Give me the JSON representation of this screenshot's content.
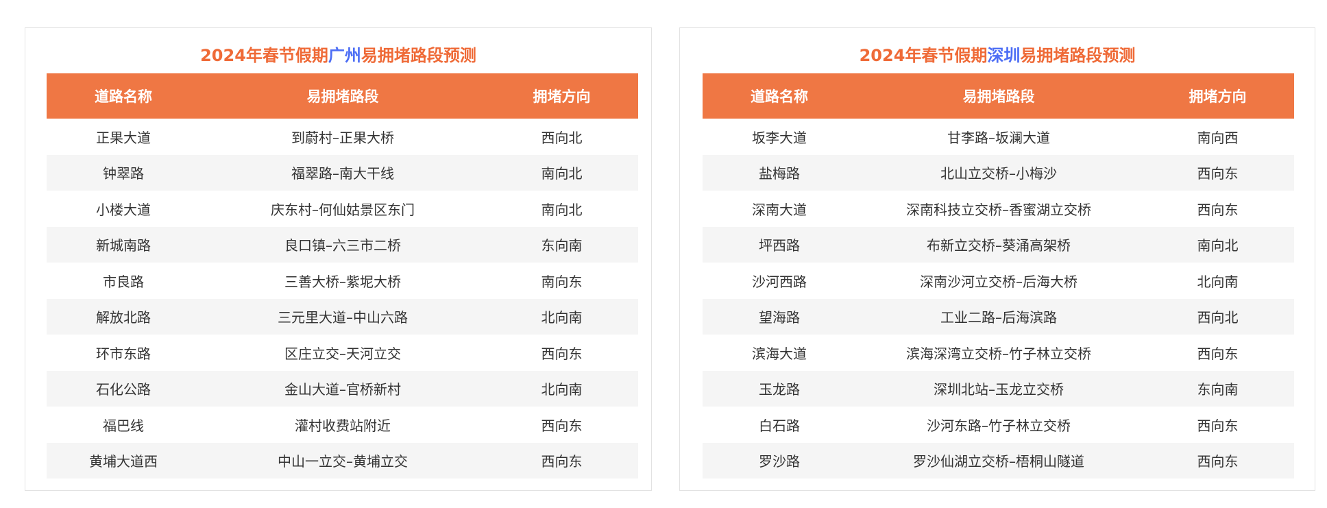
{
  "colors": {
    "header_bg": "#ef7744",
    "title": "#ef6a37",
    "city": "#4d6ef5",
    "alt_row": "#f5f5f5"
  },
  "headers": [
    "道路名称",
    "易拥堵路段",
    "拥堵方向"
  ],
  "tables": [
    {
      "title_prefix": "2024年春节假期",
      "city": "广州",
      "title_suffix": "易拥堵路段预测",
      "rows": [
        [
          "正果大道",
          "到蔚村–正果大桥",
          "西向北"
        ],
        [
          "钟翠路",
          "福翠路–南大干线",
          "南向北"
        ],
        [
          "小楼大道",
          "庆东村–何仙姑景区东门",
          "南向北"
        ],
        [
          "新城南路",
          "良口镇–六三市二桥",
          "东向南"
        ],
        [
          "市良路",
          "三善大桥–紫坭大桥",
          "南向东"
        ],
        [
          "解放北路",
          "三元里大道–中山六路",
          "北向南"
        ],
        [
          "环市东路",
          "区庄立交–天河立交",
          "西向东"
        ],
        [
          "石化公路",
          "金山大道–官桥新村",
          "北向南"
        ],
        [
          "福巴线",
          "灌村收费站附近",
          "西向东"
        ],
        [
          "黄埔大道西",
          "中山一立交–黄埔立交",
          "西向东"
        ]
      ]
    },
    {
      "title_prefix": "2024年春节假期",
      "city": "深圳",
      "title_suffix": "易拥堵路段预测",
      "rows": [
        [
          "坂李大道",
          "甘李路–坂澜大道",
          "南向西"
        ],
        [
          "盐梅路",
          "北山立交桥–小梅沙",
          "西向东"
        ],
        [
          "深南大道",
          "深南科技立交桥–香蜜湖立交桥",
          "西向东"
        ],
        [
          "坪西路",
          "布新立交桥–葵涌高架桥",
          "南向北"
        ],
        [
          "沙河西路",
          "深南沙河立交桥–后海大桥",
          "北向南"
        ],
        [
          "望海路",
          "工业二路–后海滨路",
          "西向北"
        ],
        [
          "滨海大道",
          "滨海深湾立交桥–竹子林立交桥",
          "西向东"
        ],
        [
          "玉龙路",
          "深圳北站–玉龙立交桥",
          "东向南"
        ],
        [
          "白石路",
          "沙河东路–竹子林立交桥",
          "西向东"
        ],
        [
          "罗沙路",
          "罗沙仙湖立交桥–梧桐山隧道",
          "西向东"
        ]
      ]
    }
  ]
}
